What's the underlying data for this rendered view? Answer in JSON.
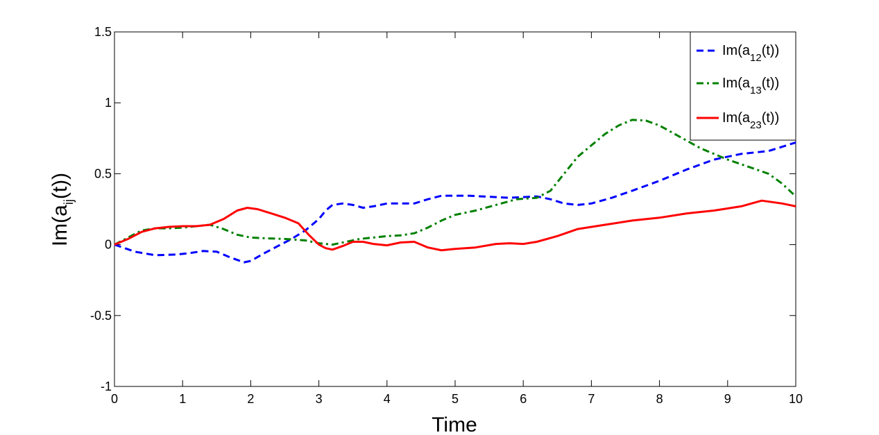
{
  "chart_data": {
    "type": "line",
    "xlabel": "Time",
    "ylabel": "Im(a_ij(t))",
    "xlim": [
      0,
      10
    ],
    "ylim": [
      -1,
      1.5
    ],
    "xticks": [
      "0",
      "1",
      "2",
      "3",
      "4",
      "5",
      "6",
      "7",
      "8",
      "9",
      "10"
    ],
    "yticks": [
      "-1",
      "-0.5",
      "0",
      "0.5",
      "1",
      "1.5"
    ],
    "grid": false,
    "legend_position": "top-right",
    "series": [
      {
        "name": "Im(a_12(t))",
        "color": "#0000ff",
        "style": "dashed",
        "x": [
          0,
          0.3,
          0.6,
          0.9,
          1.1,
          1.3,
          1.5,
          1.7,
          1.9,
          2.0,
          2.2,
          2.4,
          2.6,
          2.8,
          3.0,
          3.1,
          3.2,
          3.35,
          3.5,
          3.65,
          3.8,
          4.0,
          4.2,
          4.4,
          4.6,
          4.8,
          5.0,
          5.2,
          5.4,
          5.6,
          5.8,
          6.0,
          6.2,
          6.4,
          6.6,
          6.8,
          7.0,
          7.3,
          7.6,
          8.0,
          8.4,
          8.8,
          9.2,
          9.6,
          10.0
        ],
        "y": [
          0,
          -0.05,
          -0.075,
          -0.07,
          -0.06,
          -0.045,
          -0.05,
          -0.09,
          -0.125,
          -0.115,
          -0.06,
          -0.01,
          0.04,
          0.1,
          0.18,
          0.24,
          0.28,
          0.29,
          0.28,
          0.26,
          0.27,
          0.29,
          0.29,
          0.29,
          0.32,
          0.345,
          0.345,
          0.345,
          0.34,
          0.335,
          0.33,
          0.335,
          0.34,
          0.32,
          0.29,
          0.28,
          0.29,
          0.33,
          0.38,
          0.45,
          0.53,
          0.6,
          0.64,
          0.66,
          0.72
        ]
      },
      {
        "name": "Im(a_13(t))",
        "color": "#008000",
        "style": "dashdot",
        "x": [
          0,
          0.2,
          0.4,
          0.6,
          0.8,
          1.0,
          1.2,
          1.4,
          1.6,
          1.8,
          2.0,
          2.2,
          2.5,
          2.8,
          3.0,
          3.2,
          3.4,
          3.6,
          3.8,
          4.0,
          4.2,
          4.4,
          4.6,
          4.8,
          5.0,
          5.3,
          5.6,
          5.9,
          6.2,
          6.4,
          6.6,
          6.8,
          7.0,
          7.2,
          7.4,
          7.6,
          7.8,
          8.0,
          8.3,
          8.6,
          9.0,
          9.3,
          9.6,
          9.8,
          10.0
        ],
        "y": [
          0,
          0.05,
          0.1,
          0.115,
          0.115,
          0.12,
          0.13,
          0.14,
          0.11,
          0.07,
          0.05,
          0.045,
          0.04,
          0.03,
          0.01,
          0.0,
          0.02,
          0.04,
          0.05,
          0.06,
          0.065,
          0.08,
          0.12,
          0.17,
          0.21,
          0.24,
          0.28,
          0.32,
          0.33,
          0.38,
          0.5,
          0.62,
          0.7,
          0.78,
          0.84,
          0.88,
          0.875,
          0.84,
          0.76,
          0.68,
          0.6,
          0.55,
          0.5,
          0.43,
          0.34
        ]
      },
      {
        "name": "Im(a_23(t))",
        "color": "#ff0000",
        "style": "solid",
        "x": [
          0,
          0.2,
          0.4,
          0.6,
          0.8,
          1.0,
          1.2,
          1.4,
          1.6,
          1.8,
          1.95,
          2.1,
          2.3,
          2.5,
          2.7,
          2.85,
          3.0,
          3.1,
          3.2,
          3.35,
          3.5,
          3.65,
          3.8,
          4.0,
          4.2,
          4.4,
          4.6,
          4.8,
          5.0,
          5.3,
          5.6,
          5.8,
          6.0,
          6.2,
          6.5,
          6.8,
          7.2,
          7.6,
          8.0,
          8.4,
          8.8,
          9.2,
          9.5,
          9.8,
          10.0
        ],
        "y": [
          0,
          0.04,
          0.09,
          0.115,
          0.125,
          0.13,
          0.13,
          0.14,
          0.18,
          0.24,
          0.26,
          0.25,
          0.22,
          0.19,
          0.15,
          0.07,
          0.0,
          -0.025,
          -0.035,
          -0.01,
          0.02,
          0.02,
          0.005,
          -0.005,
          0.015,
          0.02,
          -0.02,
          -0.04,
          -0.03,
          -0.02,
          0.005,
          0.01,
          0.005,
          0.02,
          0.06,
          0.11,
          0.14,
          0.17,
          0.19,
          0.22,
          0.24,
          0.27,
          0.31,
          0.29,
          0.27
        ]
      }
    ]
  }
}
